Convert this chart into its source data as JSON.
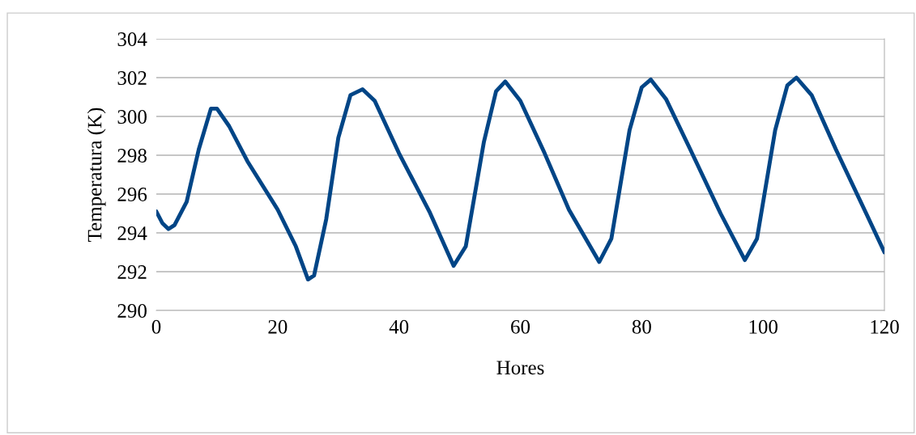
{
  "chart_data": {
    "type": "line",
    "xlabel": "Hores",
    "ylabel": "Temperatura (K)",
    "x": [
      0,
      1,
      2,
      3,
      5,
      7,
      9,
      10,
      12,
      15,
      20,
      23,
      25,
      26,
      28,
      30,
      32,
      34,
      36,
      40,
      45,
      49,
      51,
      54,
      56,
      57.5,
      60,
      64,
      68,
      73,
      75,
      78,
      80,
      81.5,
      84,
      88,
      93,
      97,
      99,
      102,
      104,
      105.5,
      108,
      112,
      117,
      120
    ],
    "series": [
      {
        "color": "#004586",
        "values": [
          295.1,
          294.5,
          294.2,
          294.4,
          295.6,
          298.3,
          300.4,
          300.4,
          299.5,
          297.7,
          295.2,
          293.3,
          291.6,
          291.8,
          294.7,
          298.9,
          301.1,
          301.4,
          300.8,
          298.1,
          295.1,
          292.3,
          293.3,
          298.7,
          301.3,
          301.8,
          300.8,
          298.1,
          295.2,
          292.5,
          293.7,
          299.3,
          301.5,
          301.9,
          300.9,
          298.3,
          295.0,
          292.6,
          293.7,
          299.3,
          301.6,
          302.0,
          301.1,
          298.3,
          295.0,
          293.0
        ]
      }
    ],
    "xlim": [
      0,
      120
    ],
    "xticks": [
      0,
      20,
      40,
      60,
      80,
      100,
      120
    ],
    "ylim": [
      290,
      304
    ],
    "yticks": [
      290,
      292,
      294,
      296,
      298,
      300,
      302,
      304
    ],
    "grid": "y",
    "legend": false,
    "marker": "none",
    "line_style": "solid"
  }
}
